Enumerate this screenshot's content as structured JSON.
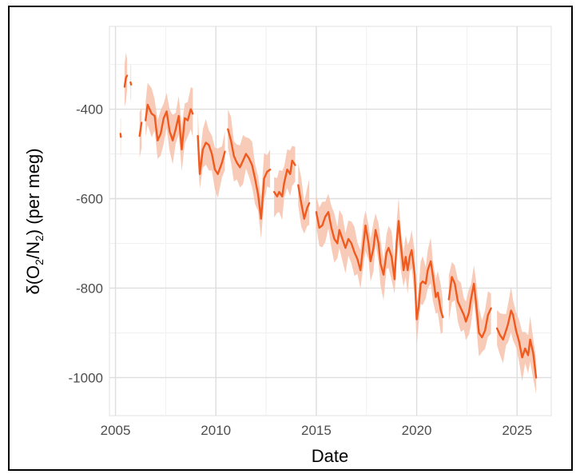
{
  "chart_data": {
    "type": "line",
    "title": "",
    "xlabel": "Date",
    "ylabel": "δ(O2/N2) (per meg)",
    "ylabel_parts": [
      "δ(O",
      "2",
      "/N",
      "2",
      ") (per meg)"
    ],
    "xlim": [
      2004.7,
      2026.7
    ],
    "ylim": [
      -1085,
      -215
    ],
    "x_ticks": [
      2005,
      2010,
      2015,
      2020,
      2025
    ],
    "x_tick_labels": [
      "2005",
      "2010",
      "2015",
      "2020",
      "2025"
    ],
    "y_ticks": [
      -400,
      -600,
      -800,
      -1000
    ],
    "y_tick_labels": [
      "-400",
      "-600",
      "-800",
      "-1000"
    ],
    "grid": true,
    "line_color": "#f05a1e",
    "band_color": "#f7c2ac",
    "series": [
      {
        "segments": [
          [
            [
              2005.25,
              -455
            ],
            [
              2005.27,
              -462
            ]
          ],
          [
            [
              2005.45,
              -350
            ],
            [
              2005.52,
              -330
            ],
            [
              2005.58,
              -325
            ]
          ],
          [
            [
              2005.75,
              -340
            ],
            [
              2005.78,
              -345
            ]
          ],
          [
            [
              2006.2,
              -460
            ],
            [
              2006.3,
              -430
            ]
          ],
          [
            [
              2006.5,
              -425
            ],
            [
              2006.6,
              -390
            ],
            [
              2006.8,
              -410
            ],
            [
              2006.95,
              -415
            ],
            [
              2007.1,
              -470
            ],
            [
              2007.25,
              -455
            ],
            [
              2007.4,
              -420
            ],
            [
              2007.55,
              -405
            ],
            [
              2007.7,
              -450
            ],
            [
              2007.85,
              -470
            ],
            [
              2008.0,
              -445
            ],
            [
              2008.15,
              -415
            ],
            [
              2008.3,
              -490
            ],
            [
              2008.45,
              -420
            ],
            [
              2008.6,
              -425
            ],
            [
              2008.75,
              -400
            ],
            [
              2008.85,
              -410
            ]
          ],
          [
            [
              2009.1,
              -460
            ],
            [
              2009.2,
              -545
            ],
            [
              2009.35,
              -490
            ],
            [
              2009.5,
              -475
            ],
            [
              2009.65,
              -480
            ],
            [
              2009.8,
              -500
            ],
            [
              2009.95,
              -535
            ],
            [
              2010.1,
              -545
            ],
            [
              2010.3,
              -520
            ],
            [
              2010.45,
              -495
            ]
          ],
          [
            [
              2010.6,
              -445
            ],
            [
              2010.75,
              -470
            ],
            [
              2010.9,
              -505
            ],
            [
              2011.05,
              -520
            ],
            [
              2011.2,
              -530
            ],
            [
              2011.35,
              -515
            ],
            [
              2011.5,
              -500
            ],
            [
              2011.65,
              -510
            ],
            [
              2011.8,
              -525
            ],
            [
              2011.95,
              -555
            ],
            [
              2012.1,
              -590
            ],
            [
              2012.25,
              -645
            ],
            [
              2012.4,
              -555
            ],
            [
              2012.55,
              -540
            ],
            [
              2012.7,
              -535
            ]
          ],
          [
            [
              2012.9,
              -585
            ],
            [
              2013.05,
              -595
            ],
            [
              2013.15,
              -585
            ],
            [
              2013.3,
              -595
            ],
            [
              2013.4,
              -565
            ],
            [
              2013.55,
              -535
            ],
            [
              2013.7,
              -545
            ],
            [
              2013.8,
              -515
            ],
            [
              2013.95,
              -525
            ]
          ],
          [
            [
              2014.1,
              -570
            ],
            [
              2014.25,
              -610
            ],
            [
              2014.4,
              -645
            ],
            [
              2014.55,
              -620
            ],
            [
              2014.65,
              -610
            ]
          ],
          [
            [
              2015.0,
              -630
            ],
            [
              2015.15,
              -665
            ],
            [
              2015.3,
              -660
            ],
            [
              2015.45,
              -640
            ],
            [
              2015.6,
              -630
            ],
            [
              2015.75,
              -665
            ],
            [
              2015.9,
              -690
            ],
            [
              2016.05,
              -700
            ],
            [
              2016.15,
              -670
            ],
            [
              2016.3,
              -690
            ],
            [
              2016.45,
              -710
            ],
            [
              2016.6,
              -690
            ],
            [
              2016.75,
              -700
            ],
            [
              2016.9,
              -720
            ],
            [
              2017.05,
              -735
            ],
            [
              2017.2,
              -760
            ],
            [
              2017.35,
              -700
            ],
            [
              2017.45,
              -660
            ],
            [
              2017.6,
              -700
            ],
            [
              2017.7,
              -740
            ],
            [
              2017.85,
              -710
            ],
            [
              2017.95,
              -670
            ],
            [
              2018.1,
              -700
            ],
            [
              2018.2,
              -745
            ],
            [
              2018.35,
              -770
            ],
            [
              2018.5,
              -720
            ],
            [
              2018.6,
              -710
            ],
            [
              2018.75,
              -730
            ],
            [
              2018.9,
              -780
            ],
            [
              2019.0,
              -700
            ],
            [
              2019.1,
              -650
            ],
            [
              2019.2,
              -700
            ],
            [
              2019.35,
              -760
            ],
            [
              2019.45,
              -730
            ],
            [
              2019.55,
              -760
            ],
            [
              2019.65,
              -730
            ],
            [
              2019.75,
              -715
            ],
            [
              2019.9,
              -770
            ],
            [
              2020.0,
              -870
            ],
            [
              2020.1,
              -840
            ],
            [
              2020.2,
              -790
            ],
            [
              2020.3,
              -785
            ],
            [
              2020.45,
              -790
            ],
            [
              2020.55,
              -760
            ],
            [
              2020.7,
              -740
            ],
            [
              2020.8,
              -770
            ],
            [
              2020.95,
              -820
            ],
            [
              2021.05,
              -810
            ],
            [
              2021.2,
              -850
            ],
            [
              2021.3,
              -865
            ]
          ],
          [
            [
              2021.6,
              -825
            ],
            [
              2021.75,
              -775
            ],
            [
              2021.9,
              -790
            ],
            [
              2022.05,
              -830
            ],
            [
              2022.2,
              -845
            ],
            [
              2022.35,
              -860
            ],
            [
              2022.45,
              -875
            ],
            [
              2022.6,
              -855
            ],
            [
              2022.7,
              -825
            ],
            [
              2022.85,
              -790
            ],
            [
              2022.95,
              -830
            ],
            [
              2023.1,
              -900
            ],
            [
              2023.25,
              -910
            ],
            [
              2023.4,
              -895
            ],
            [
              2023.55,
              -860
            ],
            [
              2023.7,
              -845
            ]
          ],
          [
            [
              2024.0,
              -890
            ],
            [
              2024.15,
              -905
            ],
            [
              2024.3,
              -915
            ],
            [
              2024.45,
              -895
            ],
            [
              2024.55,
              -880
            ],
            [
              2024.7,
              -850
            ],
            [
              2024.8,
              -860
            ],
            [
              2024.95,
              -895
            ],
            [
              2025.1,
              -920
            ],
            [
              2025.25,
              -955
            ],
            [
              2025.4,
              -935
            ],
            [
              2025.55,
              -950
            ],
            [
              2025.65,
              -915
            ],
            [
              2025.8,
              -945
            ],
            [
              2025.95,
              -1000
            ]
          ]
        ],
        "band_halfwidth": 45
      }
    ]
  }
}
